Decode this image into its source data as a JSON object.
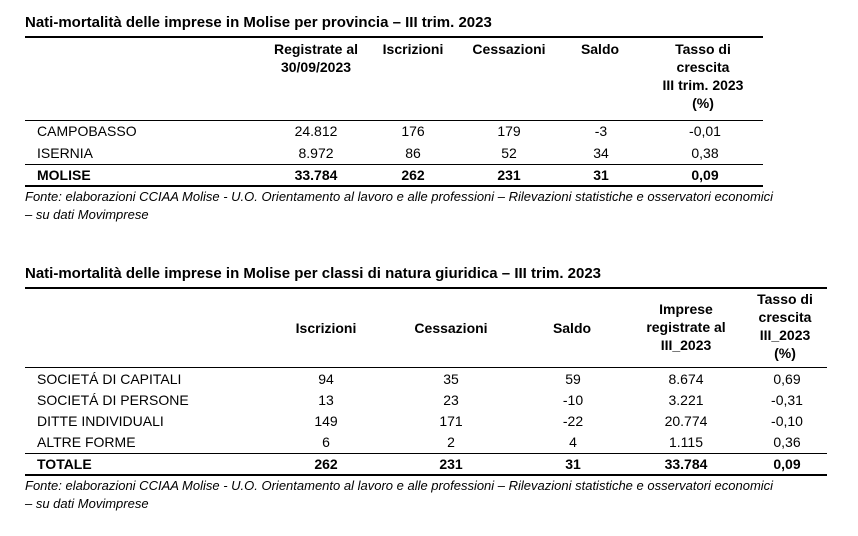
{
  "table1": {
    "title": "Nati-mortalità delle imprese in Molise per provincia – III trim. 2023",
    "headers": {
      "registrate": [
        "Registrate al",
        "30/09/2023"
      ],
      "iscrizioni": "Iscrizioni",
      "cessazioni": "Cessazioni",
      "saldo": "Saldo",
      "tasso": [
        "Tasso di",
        "crescita",
        "III trim. 2023",
        "(%)"
      ]
    },
    "rows": [
      {
        "label": "CAMPOBASSO",
        "registrate": "24.812",
        "iscrizioni": "176",
        "cessazioni": "179",
        "saldo": "-3",
        "tasso": "-0,01"
      },
      {
        "label": "ISERNIA",
        "registrate": "8.972",
        "iscrizioni": "86",
        "cessazioni": "52",
        "saldo": "34",
        "tasso": "0,38"
      }
    ],
    "total": {
      "label": "MOLISE",
      "registrate": "33.784",
      "iscrizioni": "262",
      "cessazioni": "231",
      "saldo": "31",
      "tasso": "0,09"
    },
    "source": [
      "Fonte: elaborazioni CCIAA Molise - U.O. Orientamento al lavoro e alle professioni – Rilevazioni statistiche e osservatori economici",
      "– su dati Movimprese"
    ]
  },
  "table2": {
    "title": "Nati-mortalità delle imprese in Molise per classi di natura giuridica – III trim. 2023",
    "headers": {
      "iscrizioni": "Iscrizioni",
      "cessazioni": "Cessazioni",
      "saldo": "Saldo",
      "imprese": [
        "Imprese",
        "registrate al",
        "III_2023"
      ],
      "tasso": [
        "Tasso di",
        "crescita",
        "III_2023",
        "(%)"
      ]
    },
    "rows": [
      {
        "label": "SOCIETÁ DI CAPITALI",
        "iscrizioni": "94",
        "cessazioni": "35",
        "saldo": "59",
        "imprese": "8.674",
        "tasso": "0,69"
      },
      {
        "label": "SOCIETÁ DI PERSONE",
        "iscrizioni": "13",
        "cessazioni": "23",
        "saldo": "-10",
        "imprese": "3.221",
        "tasso": "-0,31"
      },
      {
        "label": "DITTE INDIVIDUALI",
        "iscrizioni": "149",
        "cessazioni": "171",
        "saldo": "-22",
        "imprese": "20.774",
        "tasso": "-0,10"
      },
      {
        "label": "ALTRE FORME",
        "iscrizioni": "6",
        "cessazioni": "2",
        "saldo": "4",
        "imprese": "1.115",
        "tasso": "0,36"
      }
    ],
    "total": {
      "label": "TOTALE",
      "iscrizioni": "262",
      "cessazioni": "231",
      "saldo": "31",
      "imprese": "33.784",
      "tasso": "0,09"
    },
    "source": [
      "Fonte: elaborazioni CCIAA Molise - U.O. Orientamento al lavoro e alle professioni – Rilevazioni statistiche e osservatori economici",
      "– su dati Movimprese"
    ]
  }
}
